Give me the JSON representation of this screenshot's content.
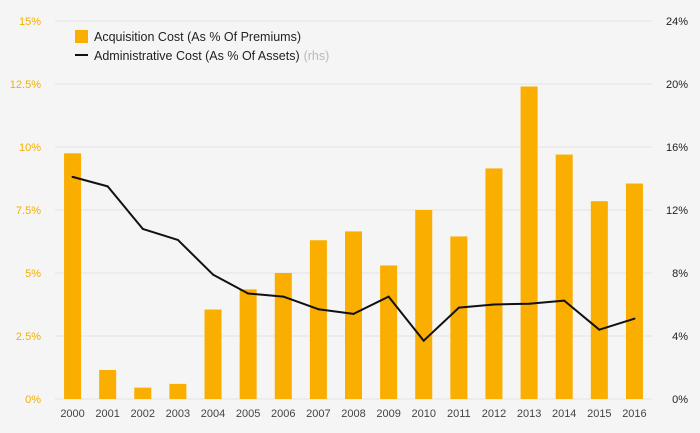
{
  "chart_data": {
    "type": "bar",
    "categories": [
      "2000",
      "2001",
      "2002",
      "2003",
      "2004",
      "2005",
      "2006",
      "2007",
      "2008",
      "2009",
      "2010",
      "2011",
      "2012",
      "2013",
      "2014",
      "2015",
      "2016"
    ],
    "series": [
      {
        "name": "Acquisition Cost (As % Of Premiums)",
        "type": "bar",
        "axis": "left",
        "color": "#f9ae00",
        "values": [
          9.75,
          1.15,
          0.45,
          0.6,
          3.55,
          4.35,
          5.0,
          6.3,
          6.65,
          5.3,
          7.5,
          6.45,
          9.15,
          12.4,
          9.7,
          7.85,
          8.55
        ]
      },
      {
        "name": "Administrative Cost (As % Of Assets)",
        "type": "line",
        "axis": "right",
        "color": "#111111",
        "values": [
          14.1,
          13.5,
          10.8,
          10.1,
          7.9,
          6.7,
          6.5,
          5.7,
          5.4,
          6.5,
          3.7,
          5.8,
          6.0,
          6.05,
          6.25,
          4.4,
          5.1
        ]
      }
    ],
    "legend_note": "(rhs)",
    "ylim_left": [
      0,
      15
    ],
    "ylim_right": [
      0,
      24
    ],
    "yticks_left": [
      "0%",
      "2.5%",
      "5%",
      "7.5%",
      "10%",
      "12.5%",
      "15%"
    ],
    "yticks_left_values": [
      0,
      2.5,
      5,
      7.5,
      10,
      12.5,
      15
    ],
    "yticks_right": [
      "0%",
      "4%",
      "8%",
      "12%",
      "16%",
      "20%",
      "24%"
    ],
    "yticks_right_values": [
      0,
      4,
      8,
      12,
      16,
      20,
      24
    ],
    "grid": true,
    "legend_position": "top-left",
    "title": "",
    "xlabel": "",
    "ylabel": ""
  }
}
